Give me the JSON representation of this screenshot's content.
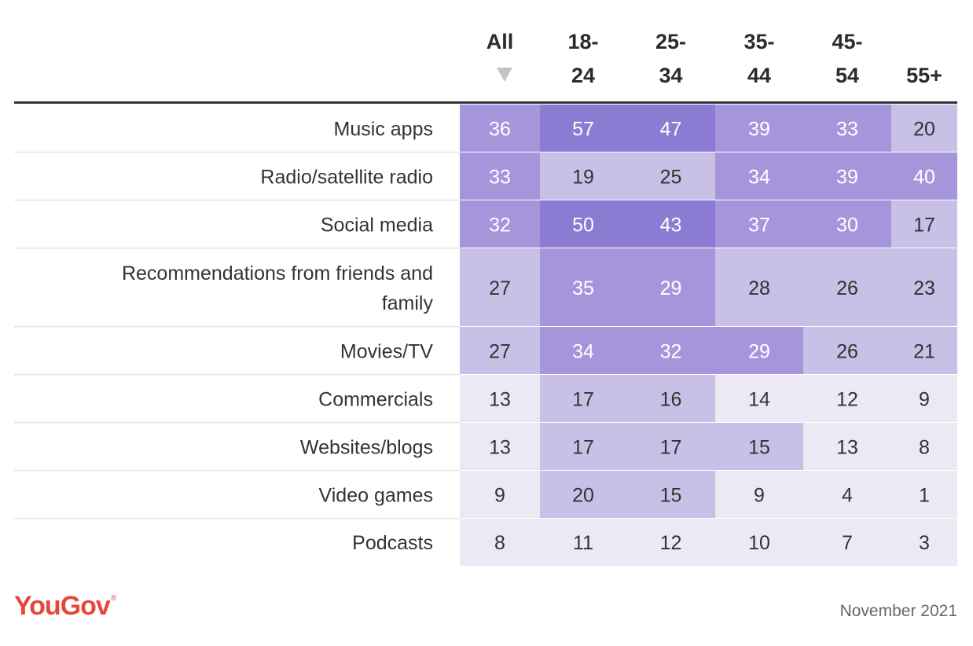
{
  "chart_data": {
    "type": "heatmap",
    "columns": [
      {
        "line1": "All",
        "line2": ""
      },
      {
        "line1": "18-",
        "line2": "24"
      },
      {
        "line1": "25-",
        "line2": "34"
      },
      {
        "line1": "35-",
        "line2": "44"
      },
      {
        "line1": "45-",
        "line2": "54"
      },
      {
        "line1": "",
        "line2": "55+"
      }
    ],
    "sort_indicator_column": 0,
    "rows": [
      {
        "label": [
          "Music apps"
        ],
        "values": [
          36,
          57,
          47,
          39,
          33,
          20
        ]
      },
      {
        "label": [
          "Radio/satellite radio"
        ],
        "values": [
          33,
          19,
          25,
          34,
          39,
          40
        ]
      },
      {
        "label": [
          "Social media"
        ],
        "values": [
          32,
          50,
          43,
          37,
          30,
          17
        ]
      },
      {
        "label": [
          "Recommendations from friends and",
          "family"
        ],
        "values": [
          27,
          35,
          29,
          28,
          26,
          23
        ]
      },
      {
        "label": [
          "Movies/TV"
        ],
        "values": [
          27,
          34,
          32,
          29,
          26,
          21
        ]
      },
      {
        "label": [
          "Commercials"
        ],
        "values": [
          13,
          17,
          16,
          14,
          12,
          9
        ]
      },
      {
        "label": [
          "Websites/blogs"
        ],
        "values": [
          13,
          17,
          17,
          15,
          13,
          8
        ]
      },
      {
        "label": [
          "Video games"
        ],
        "values": [
          9,
          20,
          15,
          9,
          4,
          1
        ]
      },
      {
        "label": [
          "Podcasts"
        ],
        "values": [
          8,
          11,
          12,
          10,
          7,
          3
        ]
      }
    ],
    "color_scale": [
      {
        "max": 14,
        "fill": "#ede9f4",
        "text": "#333333"
      },
      {
        "max": 28,
        "fill": "#c8c0e6",
        "text": "#333333"
      },
      {
        "max": 42,
        "fill": "#a596dc",
        "text": "#ffffff"
      },
      {
        "max": 100,
        "fill": "#8b7bd3",
        "text": "#ffffff"
      }
    ]
  },
  "footer": {
    "brand": "YouGov",
    "brand_mark": "®",
    "date": "November 2021"
  },
  "colors": {
    "brand": "#e5483a",
    "rule": "#333333"
  }
}
